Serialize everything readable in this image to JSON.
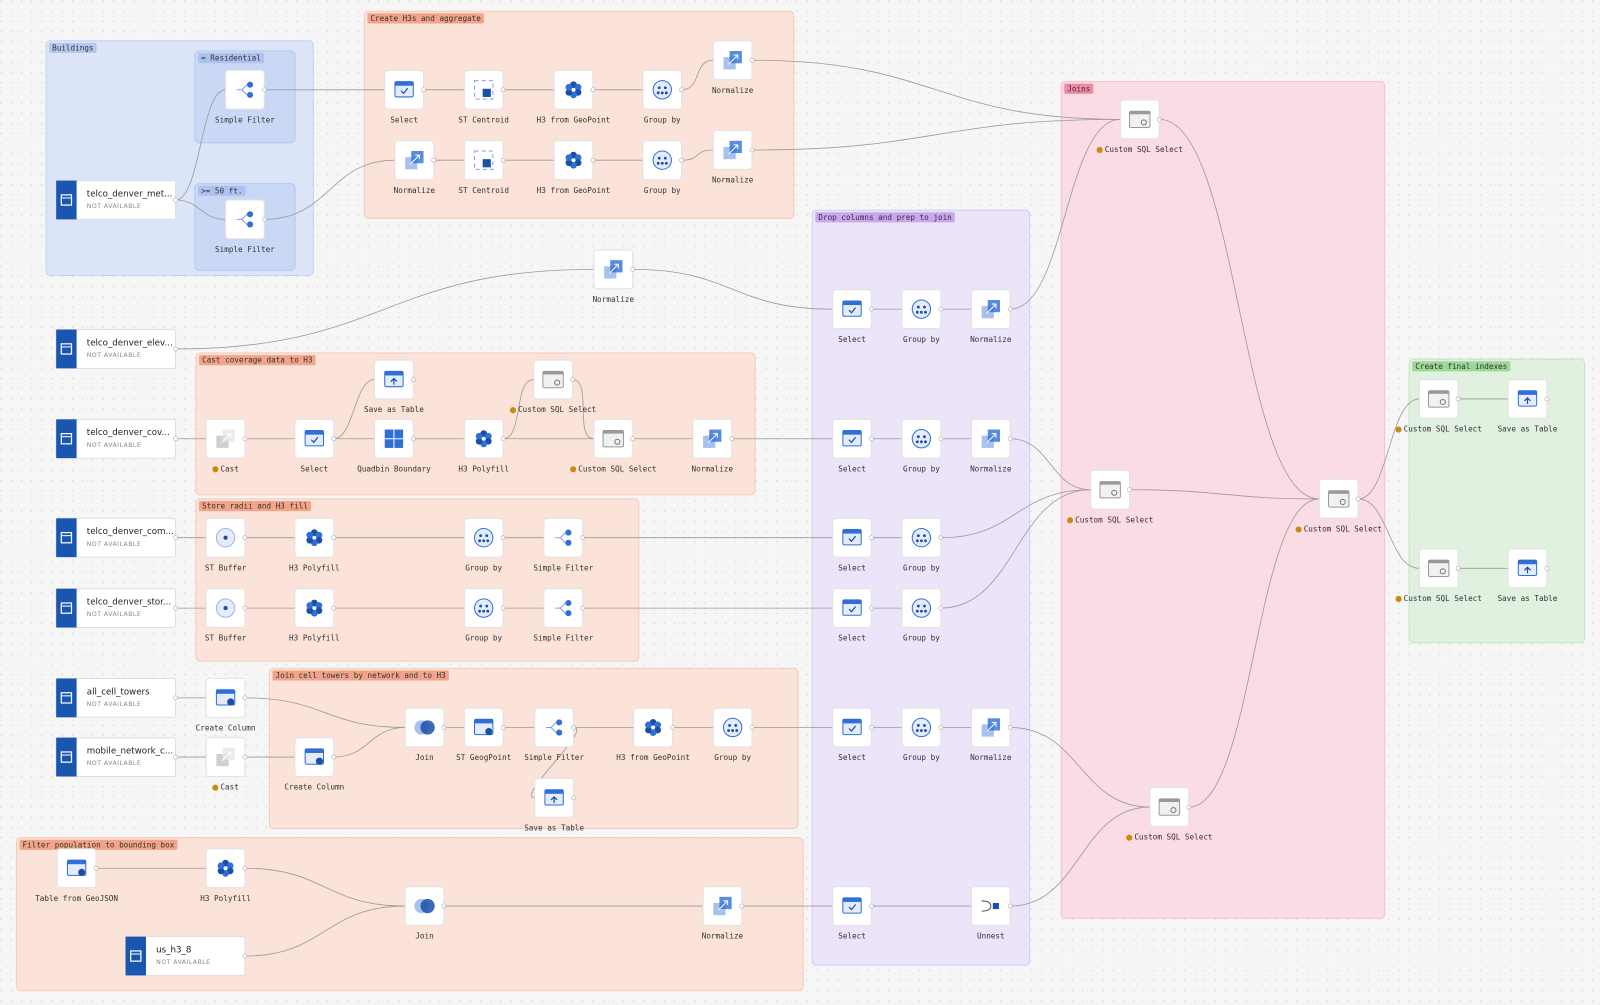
{
  "groups": [
    {
      "label": "Buildings"
    },
    {
      "label": "= Residential"
    },
    {
      "label": ">= 50 ft."
    },
    {
      "label": "Create H3s and aggregate"
    },
    {
      "label": "Joins"
    },
    {
      "label": "Drop columns and prep to join"
    },
    {
      "label": "Cast coverage data to H3"
    },
    {
      "label": "Store radii and H3 fill"
    },
    {
      "label": "Create final indexes"
    },
    {
      "label": "Join cell towers by network and to H3"
    },
    {
      "label": "Filter population to bounding box"
    }
  ],
  "sources": [
    {
      "name": "telco_denver_met...",
      "status": "NOT AVAILABLE"
    },
    {
      "name": "telco_denver_elev...",
      "status": "NOT AVAILABLE"
    },
    {
      "name": "telco_denver_cov...",
      "status": "NOT AVAILABLE"
    },
    {
      "name": "telco_denver_com...",
      "status": "NOT AVAILABLE"
    },
    {
      "name": "telco_denver_stor...",
      "status": "NOT AVAILABLE"
    },
    {
      "name": "all_cell_towers",
      "status": "NOT AVAILABLE"
    },
    {
      "name": "mobile_network_c...",
      "status": "NOT AVAILABLE"
    },
    {
      "name": "us_h3_8",
      "status": "NOT AVAILABLE"
    }
  ],
  "nodes": [
    {
      "label": "Simple Filter"
    },
    {
      "label": "Simple Filter"
    },
    {
      "label": "Select"
    },
    {
      "label": "ST Centroid"
    },
    {
      "label": "H3 from GeoPoint"
    },
    {
      "label": "Group by"
    },
    {
      "label": "Normalize"
    },
    {
      "label": "Normalize"
    },
    {
      "label": "ST Centroid"
    },
    {
      "label": "H3 from GeoPoint"
    },
    {
      "label": "Group by"
    },
    {
      "label": "Normalize"
    },
    {
      "label": "Custom SQL Select"
    },
    {
      "label": "Normalize"
    },
    {
      "label": "Select"
    },
    {
      "label": "Group by"
    },
    {
      "label": "Normalize"
    },
    {
      "label": "Save as Table"
    },
    {
      "label": "Custom SQL Select"
    },
    {
      "label": "Cast"
    },
    {
      "label": "Select"
    },
    {
      "label": "Quadbin Boundary"
    },
    {
      "label": "H3 Polyfill"
    },
    {
      "label": "Custom SQL Select"
    },
    {
      "label": "Normalize"
    },
    {
      "label": "Select"
    },
    {
      "label": "Group by"
    },
    {
      "label": "Normalize"
    },
    {
      "label": "Custom SQL Select"
    },
    {
      "label": "Custom SQL Select"
    },
    {
      "label": "Custom SQL Select"
    },
    {
      "label": "Save as Table"
    },
    {
      "label": "Custom SQL Select"
    },
    {
      "label": "Save as Table"
    },
    {
      "label": "ST Buffer"
    },
    {
      "label": "H3 Polyfill"
    },
    {
      "label": "Group by"
    },
    {
      "label": "Simple Filter"
    },
    {
      "label": "Select"
    },
    {
      "label": "Group by"
    },
    {
      "label": "ST Buffer"
    },
    {
      "label": "H3 Polyfill"
    },
    {
      "label": "Group by"
    },
    {
      "label": "Simple Filter"
    },
    {
      "label": "Select"
    },
    {
      "label": "Group by"
    },
    {
      "label": "Create Column"
    },
    {
      "label": "Cast"
    },
    {
      "label": "Create Column"
    },
    {
      "label": "Join"
    },
    {
      "label": "ST GeogPoint"
    },
    {
      "label": "Simple Filter"
    },
    {
      "label": "H3 from GeoPoint"
    },
    {
      "label": "Group by"
    },
    {
      "label": "Save as Table"
    },
    {
      "label": "Select"
    },
    {
      "label": "Group by"
    },
    {
      "label": "Normalize"
    },
    {
      "label": "Custom SQL Select"
    },
    {
      "label": "Table from GeoJSON"
    },
    {
      "label": "H3 Polyfill"
    },
    {
      "label": "Join"
    },
    {
      "label": "Normalize"
    },
    {
      "label": "Select"
    },
    {
      "label": "Unnest"
    }
  ]
}
